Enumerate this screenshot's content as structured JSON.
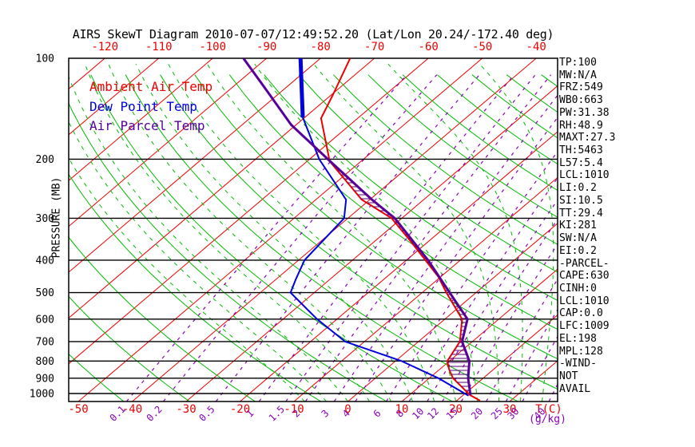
{
  "title": "AIRS SkewT Diagram 2010-07-07/12:49:52.20 (Lat/Lon 20.24/-172.40 deg)",
  "axes": {
    "pressure_label": "PRESSURE (MB)",
    "pressure_ticks": [
      100,
      200,
      300,
      400,
      500,
      600,
      700,
      800,
      900,
      1000
    ],
    "top_temp_labels": [
      -120,
      -110,
      -100,
      -90,
      -80,
      -70,
      -60,
      -50,
      -40
    ],
    "bottom_temp_labels": [
      -50,
      -40,
      -30,
      -20,
      -10,
      0,
      10,
      20,
      30
    ],
    "temp_unit_label": "T(C)",
    "mixing_unit_label": "(g/kg)"
  },
  "legend": {
    "items": [
      {
        "label": "Ambient Air Temp",
        "color": "#ee0000"
      },
      {
        "label": "Dew Point Temp",
        "color": "#0000dd"
      },
      {
        "label": "Air Parcel Temp",
        "color": "#550099"
      }
    ]
  },
  "panel": {
    "lines": [
      "TP:100",
      "MW:N/A",
      "FRZ:549",
      "WB0:663",
      "PW:31.38",
      "RH:48.9",
      "MAXT:27.3",
      "TH:5463",
      "L57:5.4",
      "LCL:1010",
      "LI:0.2",
      "SI:10.5",
      "TT:29.4",
      "KI:281",
      "SW:N/A",
      "EI:0.2",
      "-PARCEL-",
      "CAPE:630",
      "CINH:0",
      "LCL:1010",
      "CAP:0.0",
      "LFC:1009",
      "EL:198",
      "MPL:128",
      "-WIND-",
      "NOT",
      "AVAIL"
    ]
  },
  "colors": {
    "isotherm": "#ee0000",
    "adiabat": "#00bb00",
    "mixing": "#8800bb",
    "ambient": "#ee0000",
    "dewpoint": "#0000dd",
    "parcel": "#550099",
    "hatch": "#550077",
    "frame": "#000000",
    "tick_text": "#000000",
    "temp_label_text": "#ee0000",
    "mixing_label_text": "#8800bb"
  },
  "chart_data": {
    "type": "line",
    "title": "AIRS SkewT Diagram 2010-07-07/12:49:52.20 (Lat/Lon 20.24/-172.40 deg)",
    "x_axis": {
      "label": "T(C)",
      "unit": "degC",
      "skewed": true
    },
    "y_axis": {
      "label": "PRESSURE (MB)",
      "scale": "log",
      "range": [
        100,
        1050
      ]
    },
    "series": [
      {
        "name": "Ambient Air Temp",
        "color": "#ee0000",
        "width": 2,
        "points_P_T": [
          [
            100,
            -74.5
          ],
          [
            128,
            -69.8
          ],
          [
            151,
            -66.8
          ],
          [
            203,
            -55.8
          ],
          [
            264,
            -41.5
          ],
          [
            300,
            -31.9
          ],
          [
            353,
            -23.1
          ],
          [
            449,
            -10.4
          ],
          [
            500,
            -5.5
          ],
          [
            600,
            3.2
          ],
          [
            700,
            7.7
          ],
          [
            800,
            9.6
          ],
          [
            850,
            11.9
          ],
          [
            900,
            14.4
          ],
          [
            1010,
            21.2
          ],
          [
            1050,
            24.3
          ]
        ]
      },
      {
        "name": "Dew Point Temp (upper)",
        "color": "#0000dd",
        "width": 5,
        "points_P_T": [
          [
            100,
            -83.7
          ],
          [
            150,
            -70.4
          ]
        ]
      },
      {
        "name": "Dew Point Temp",
        "color": "#0000dd",
        "width": 2,
        "points_P_T": [
          [
            150,
            -70.4
          ],
          [
            200,
            -58.2
          ],
          [
            264,
            -44.4
          ],
          [
            300,
            -40.7
          ],
          [
            400,
            -38.9
          ],
          [
            455,
            -36.4
          ],
          [
            500,
            -34.4
          ],
          [
            600,
            -23.7
          ],
          [
            700,
            -13.6
          ],
          [
            800,
            1.1
          ],
          [
            900,
            11.7
          ],
          [
            1015,
            21.1
          ]
        ]
      },
      {
        "name": "Air Parcel Temp",
        "color": "#550099",
        "width": 3,
        "points_P_T": [
          [
            100,
            -94.3
          ],
          [
            122,
            -84.1
          ],
          [
            158,
            -70.9
          ],
          [
            200,
            -56.6
          ],
          [
            264,
            -39.6
          ],
          [
            300,
            -31.3
          ],
          [
            400,
            -16.0
          ],
          [
            500,
            -4.9
          ],
          [
            600,
            4.2
          ],
          [
            700,
            8.1
          ],
          [
            800,
            13.7
          ],
          [
            900,
            17.2
          ],
          [
            1010,
            21.3
          ]
        ]
      }
    ],
    "background": {
      "isotherms_C": {
        "from": -120,
        "to": 40,
        "step": 10
      },
      "dry_adiabats_theta_K": {
        "from": 216,
        "to": 456,
        "step": 12
      },
      "moist_adiabats_surface_T_C": {
        "from": -8,
        "to": 76,
        "step": 4
      },
      "mixing_ratio_g_kg": [
        0.1,
        0.2,
        0.5,
        1,
        1.5,
        2,
        3,
        4,
        6,
        8,
        10,
        12,
        15,
        20,
        25,
        30,
        40
      ],
      "pressure_lines_mb": [
        200,
        300,
        400,
        500,
        600,
        700,
        800,
        900,
        1000
      ]
    },
    "cape_hatch": {
      "between": [
        "Air Parcel Temp",
        "Ambient Air Temp"
      ],
      "pressure_range_mb": [
        199,
        1009
      ]
    }
  }
}
